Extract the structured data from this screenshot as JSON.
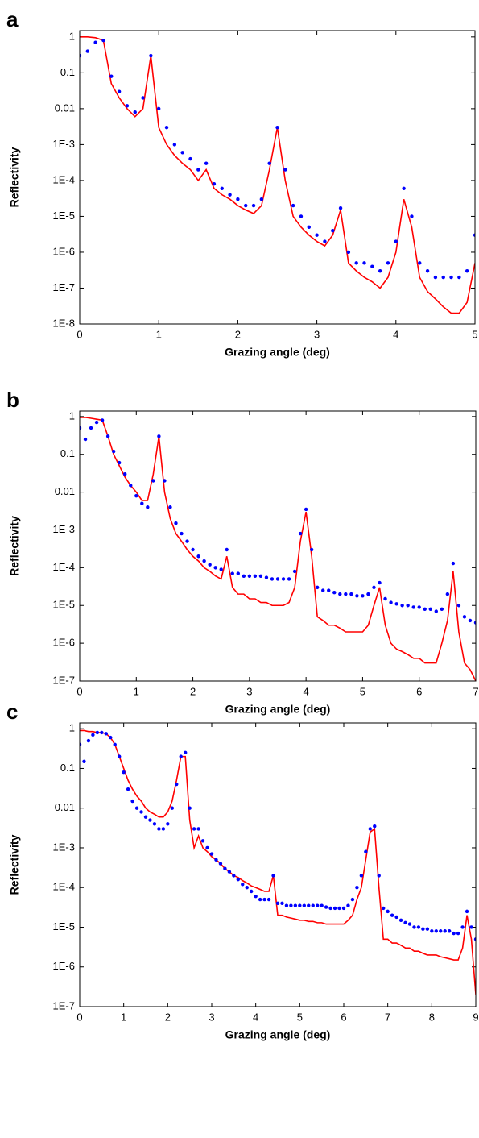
{
  "chart_data": [
    {
      "type": "line",
      "panel_label": "a",
      "x_label": "Grazing angle (deg)",
      "y_label": "Reflectivity",
      "log_y": true,
      "xlim": [
        0,
        5
      ],
      "xticks": [
        0,
        1,
        2,
        3,
        4,
        5
      ],
      "ylim": [
        1e-08,
        1.5
      ],
      "yticks": [
        {
          "value": 1e-08,
          "label": "1E-8"
        },
        {
          "value": 1e-07,
          "label": "1E-7"
        },
        {
          "value": 1e-06,
          "label": "1E-6"
        },
        {
          "value": 1e-05,
          "label": "1E-5"
        },
        {
          "value": 0.0001,
          "label": "1E-4"
        },
        {
          "value": 0.001,
          "label": "1E-3"
        },
        0.01,
        0.1,
        1
      ],
      "x": [
        0,
        0.1,
        0.2,
        0.3,
        0.4,
        0.5,
        0.6,
        0.7,
        0.8,
        0.9,
        1,
        1.1,
        1.2,
        1.3,
        1.4,
        1.5,
        1.6,
        1.7,
        1.8,
        1.9,
        2,
        2.1,
        2.2,
        2.3,
        2.4,
        2.5,
        2.6,
        2.7,
        2.8,
        2.9,
        3,
        3.1,
        3.2,
        3.3,
        3.4,
        3.5,
        3.6,
        3.7,
        3.8,
        3.9,
        4,
        4.1,
        4.2,
        4.3,
        4.4,
        4.5,
        4.6,
        4.7,
        4.8,
        4.9,
        5
      ],
      "series": [
        {
          "color": "#ff0000",
          "style": "line",
          "values": [
            1,
            1,
            0.95,
            0.8,
            0.05,
            0.02,
            0.01,
            0.006,
            0.01,
            0.3,
            0.003,
            0.001,
            0.0005,
            0.0003,
            0.0002,
            0.0001,
            0.0002,
            6e-05,
            4e-05,
            3e-05,
            2e-05,
            1.5e-05,
            1.2e-05,
            2e-05,
            0.0002,
            0.003,
            0.0001,
            1e-05,
            5e-06,
            3e-06,
            2e-06,
            1.5e-06,
            3e-06,
            1.5e-05,
            5e-07,
            3e-07,
            2e-07,
            1.5e-07,
            1e-07,
            2e-07,
            1e-06,
            3e-05,
            5e-06,
            2e-07,
            8e-08,
            5e-08,
            3e-08,
            2e-08,
            2e-08,
            4e-08,
            5e-07
          ]
        },
        {
          "color": "#0000ff",
          "style": "markers",
          "values": [
            0.3,
            0.4,
            0.7,
            0.8,
            0.08,
            0.03,
            0.012,
            0.008,
            0.02,
            0.3,
            0.01,
            0.003,
            0.001,
            0.0006,
            0.0004,
            0.0002,
            0.0003,
            8e-05,
            6e-05,
            4e-05,
            3e-05,
            2e-05,
            2e-05,
            3e-05,
            0.0003,
            0.003,
            0.0002,
            2e-05,
            1e-05,
            5e-06,
            3e-06,
            2e-06,
            4e-06,
            1.7e-05,
            1e-06,
            5e-07,
            5e-07,
            4e-07,
            3e-07,
            5e-07,
            2e-06,
            6e-05,
            1e-05,
            5e-07,
            3e-07,
            2e-07,
            2e-07,
            2e-07,
            2e-07,
            3e-07,
            3e-06
          ]
        }
      ]
    },
    {
      "type": "line",
      "panel_label": "b",
      "x_label": "Grazing angle (deg)",
      "y_label": "Reflectivity",
      "log_y": true,
      "xlim": [
        0,
        7
      ],
      "xticks": [
        0,
        1,
        2,
        3,
        4,
        5,
        6,
        7
      ],
      "ylim": [
        1e-07,
        1.4
      ],
      "yticks": [
        {
          "value": 1e-07,
          "label": "1E-7"
        },
        {
          "value": 1e-06,
          "label": "1E-6"
        },
        {
          "value": 1e-05,
          "label": "1E-5"
        },
        {
          "value": 0.0001,
          "label": "1E-4"
        },
        {
          "value": 0.001,
          "label": "1E-3"
        },
        0.01,
        0.1,
        1
      ],
      "x": [
        0,
        0.1,
        0.2,
        0.3,
        0.4,
        0.5,
        0.6,
        0.7,
        0.8,
        0.9,
        1,
        1.1,
        1.2,
        1.3,
        1.4,
        1.5,
        1.6,
        1.7,
        1.8,
        1.9,
        2,
        2.1,
        2.2,
        2.3,
        2.4,
        2.5,
        2.6,
        2.7,
        2.8,
        2.9,
        3,
        3.1,
        3.2,
        3.3,
        3.4,
        3.5,
        3.6,
        3.7,
        3.8,
        3.9,
        4,
        4.1,
        4.2,
        4.3,
        4.4,
        4.5,
        4.6,
        4.7,
        4.8,
        4.9,
        5,
        5.1,
        5.2,
        5.3,
        5.4,
        5.5,
        5.6,
        5.7,
        5.8,
        5.9,
        6,
        6.1,
        6.2,
        6.3,
        6.4,
        6.5,
        6.6,
        6.7,
        6.8,
        6.9,
        7
      ],
      "series": [
        {
          "color": "#ff0000",
          "style": "line",
          "values": [
            0.95,
            0.95,
            0.9,
            0.85,
            0.8,
            0.3,
            0.1,
            0.05,
            0.025,
            0.015,
            0.01,
            0.006,
            0.006,
            0.03,
            0.3,
            0.01,
            0.002,
            0.0008,
            0.0005,
            0.0003,
            0.0002,
            0.00015,
            0.0001,
            8e-05,
            6e-05,
            5e-05,
            0.0002,
            3e-05,
            2e-05,
            2e-05,
            1.5e-05,
            1.5e-05,
            1.2e-05,
            1.2e-05,
            1e-05,
            1e-05,
            1e-05,
            1.2e-05,
            3e-05,
            0.0005,
            0.003,
            0.0002,
            5e-06,
            4e-06,
            3e-06,
            3e-06,
            2.5e-06,
            2e-06,
            2e-06,
            2e-06,
            2e-06,
            3e-06,
            1e-05,
            3e-05,
            3e-06,
            1e-06,
            7e-07,
            6e-07,
            5e-07,
            4e-07,
            4e-07,
            3e-07,
            3e-07,
            3e-07,
            1e-06,
            4e-06,
            8e-05,
            2e-06,
            3e-07,
            2e-07,
            1e-07
          ]
        },
        {
          "color": "#0000ff",
          "style": "markers",
          "values": [
            0.5,
            0.25,
            0.5,
            0.7,
            0.8,
            0.3,
            0.12,
            0.06,
            0.03,
            0.015,
            0.008,
            0.005,
            0.004,
            0.02,
            0.3,
            0.02,
            0.004,
            0.0015,
            0.0008,
            0.0005,
            0.0003,
            0.0002,
            0.00015,
            0.00012,
            0.0001,
            9e-05,
            0.0003,
            7e-05,
            7e-05,
            6e-05,
            6e-05,
            6e-05,
            6e-05,
            5.5e-05,
            5e-05,
            5e-05,
            5e-05,
            5e-05,
            8e-05,
            0.0008,
            0.0035,
            0.0003,
            3e-05,
            2.5e-05,
            2.5e-05,
            2.2e-05,
            2e-05,
            2e-05,
            2e-05,
            1.8e-05,
            1.8e-05,
            2e-05,
            3e-05,
            4e-05,
            1.5e-05,
            1.2e-05,
            1.1e-05,
            1e-05,
            1e-05,
            9e-06,
            9e-06,
            8e-06,
            8e-06,
            7e-06,
            8e-06,
            2e-05,
            0.00013,
            1e-05,
            5e-06,
            4e-06,
            3.5e-06
          ]
        }
      ]
    },
    {
      "type": "line",
      "panel_label": "c",
      "x_label": "Grazing angle (deg)",
      "y_label": "Reflectivity",
      "log_y": true,
      "xlim": [
        0,
        9
      ],
      "xticks": [
        0,
        1,
        2,
        3,
        4,
        5,
        6,
        7,
        8,
        9
      ],
      "ylim": [
        1e-07,
        1.4
      ],
      "yticks": [
        {
          "value": 1e-07,
          "label": "1E-7"
        },
        {
          "value": 1e-06,
          "label": "1E-6"
        },
        {
          "value": 1e-05,
          "label": "1E-5"
        },
        {
          "value": 0.0001,
          "label": "1E-4"
        },
        {
          "value": 0.001,
          "label": "1E-3"
        },
        0.01,
        0.1,
        1
      ],
      "x": [
        0,
        0.1,
        0.2,
        0.3,
        0.4,
        0.5,
        0.6,
        0.7,
        0.8,
        0.9,
        1,
        1.1,
        1.2,
        1.3,
        1.4,
        1.5,
        1.6,
        1.7,
        1.8,
        1.9,
        2,
        2.1,
        2.2,
        2.3,
        2.4,
        2.5,
        2.6,
        2.7,
        2.8,
        2.9,
        3,
        3.1,
        3.2,
        3.3,
        3.4,
        3.5,
        3.6,
        3.7,
        3.8,
        3.9,
        4,
        4.1,
        4.2,
        4.3,
        4.4,
        4.5,
        4.6,
        4.7,
        4.8,
        4.9,
        5,
        5.1,
        5.2,
        5.3,
        5.4,
        5.5,
        5.6,
        5.7,
        5.8,
        5.9,
        6,
        6.1,
        6.2,
        6.3,
        6.4,
        6.5,
        6.6,
        6.7,
        6.8,
        6.9,
        7,
        7.1,
        7.2,
        7.3,
        7.4,
        7.5,
        7.6,
        7.7,
        7.8,
        7.9,
        8,
        8.1,
        8.2,
        8.3,
        8.4,
        8.5,
        8.6,
        8.7,
        8.8,
        8.9,
        9
      ],
      "series": [
        {
          "color": "#ff0000",
          "style": "line",
          "values": [
            0.9,
            0.9,
            0.85,
            0.85,
            0.8,
            0.8,
            0.75,
            0.6,
            0.4,
            0.2,
            0.1,
            0.05,
            0.03,
            0.02,
            0.015,
            0.01,
            0.008,
            0.007,
            0.006,
            0.006,
            0.008,
            0.015,
            0.05,
            0.2,
            0.2,
            0.005,
            0.001,
            0.002,
            0.001,
            0.0008,
            0.0006,
            0.0005,
            0.0004,
            0.0003,
            0.00025,
            0.0002,
            0.00018,
            0.00015,
            0.00013,
            0.00011,
            0.0001,
            9e-05,
            8e-05,
            8e-05,
            0.0002,
            2e-05,
            2e-05,
            1.8e-05,
            1.7e-05,
            1.6e-05,
            1.5e-05,
            1.5e-05,
            1.4e-05,
            1.4e-05,
            1.3e-05,
            1.3e-05,
            1.2e-05,
            1.2e-05,
            1.2e-05,
            1.2e-05,
            1.2e-05,
            1.5e-05,
            2e-05,
            5e-05,
            0.0001,
            0.0005,
            0.0025,
            0.003,
            0.0001,
            5e-06,
            5e-06,
            4e-06,
            4e-06,
            3.5e-06,
            3e-06,
            3e-06,
            2.5e-06,
            2.5e-06,
            2.2e-06,
            2e-06,
            2e-06,
            2e-06,
            1.8e-06,
            1.7e-06,
            1.6e-06,
            1.5e-06,
            1.5e-06,
            3e-06,
            2e-05,
            5e-06,
            2e-07
          ]
        },
        {
          "color": "#0000ff",
          "style": "markers",
          "values": [
            0.4,
            0.15,
            0.5,
            0.7,
            0.8,
            0.8,
            0.75,
            0.6,
            0.4,
            0.2,
            0.08,
            0.03,
            0.015,
            0.01,
            0.008,
            0.006,
            0.005,
            0.004,
            0.003,
            0.003,
            0.004,
            0.01,
            0.04,
            0.2,
            0.25,
            0.01,
            0.003,
            0.003,
            0.0015,
            0.001,
            0.0007,
            0.0005,
            0.0004,
            0.0003,
            0.00025,
            0.0002,
            0.00016,
            0.00012,
            0.0001,
            8e-05,
            6e-05,
            5e-05,
            5e-05,
            5e-05,
            0.0002,
            4e-05,
            4e-05,
            3.5e-05,
            3.5e-05,
            3.5e-05,
            3.5e-05,
            3.5e-05,
            3.5e-05,
            3.5e-05,
            3.5e-05,
            3.5e-05,
            3.2e-05,
            3e-05,
            3e-05,
            3e-05,
            3e-05,
            3.5e-05,
            5e-05,
            0.0001,
            0.0002,
            0.0008,
            0.003,
            0.0035,
            0.0002,
            3e-05,
            2.5e-05,
            2e-05,
            1.8e-05,
            1.5e-05,
            1.3e-05,
            1.2e-05,
            1e-05,
            1e-05,
            9e-06,
            9e-06,
            8e-06,
            8e-06,
            8e-06,
            8e-06,
            8e-06,
            7e-06,
            7e-06,
            1e-05,
            2.5e-05,
            1e-05,
            5e-06
          ]
        }
      ]
    }
  ]
}
